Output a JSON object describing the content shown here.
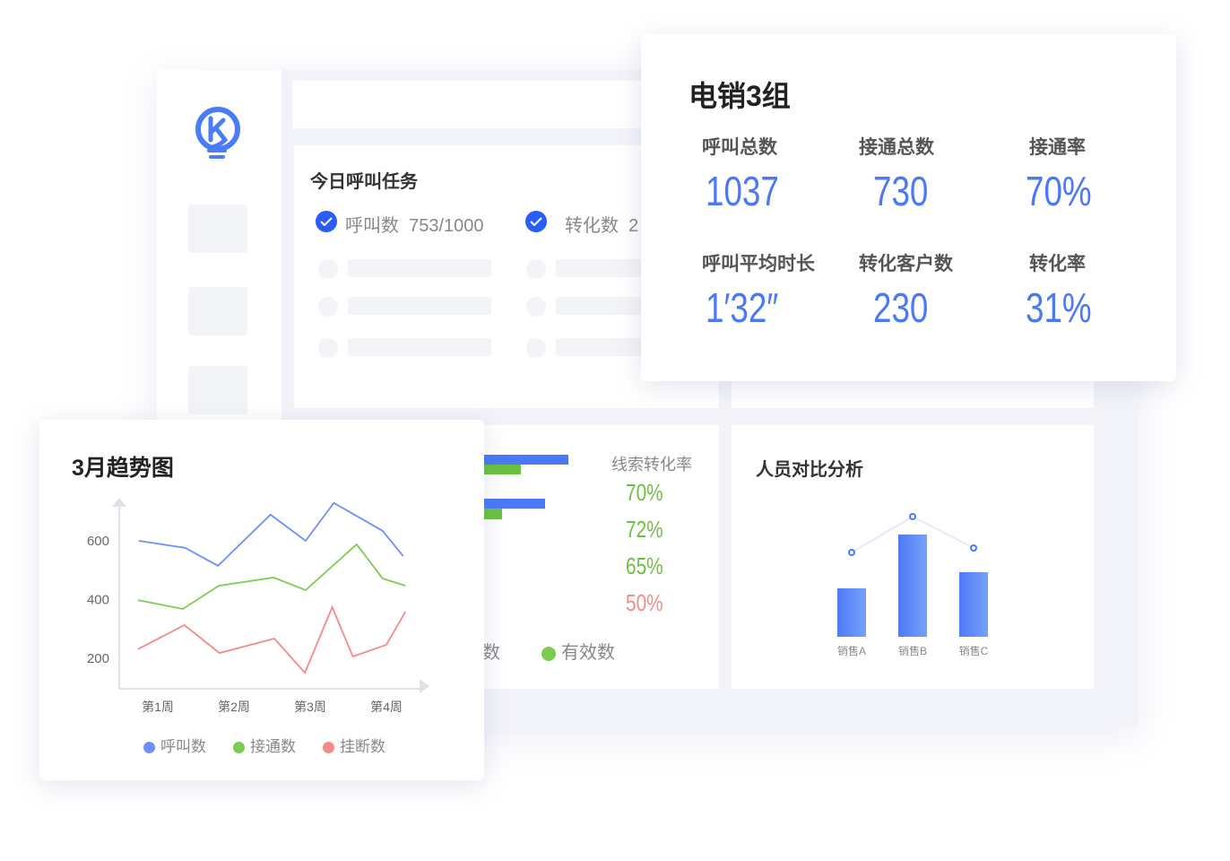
{
  "colors": {
    "accent": "#2a5cf6",
    "blue": "#6e8ff7",
    "green": "#7ccc52",
    "red": "#f38a8a"
  },
  "logo": {
    "icon": "lightbulb-k-logo"
  },
  "task": {
    "title": "今日呼叫任务",
    "items": [
      {
        "label": "呼叫数",
        "value": "753/1000"
      },
      {
        "label": "转化数",
        "value": "2"
      }
    ]
  },
  "team": {
    "title": "电销3组",
    "stats": [
      {
        "label": "呼叫总数",
        "value": "1037"
      },
      {
        "label": "接通总数",
        "value": "730"
      },
      {
        "label": "接通率",
        "value": "70%"
      },
      {
        "label": "呼叫平均时长",
        "value": "1′32″"
      },
      {
        "label": "转化客户数",
        "value": "230"
      },
      {
        "label": "转化率",
        "value": "31%"
      }
    ]
  },
  "leads": {
    "rate_title": "线索转化率",
    "rates": [
      {
        "value": "70%",
        "color": "#6cc040"
      },
      {
        "value": "72%",
        "color": "#6cc040"
      },
      {
        "value": "65%",
        "color": "#6cc040"
      },
      {
        "value": "50%",
        "color": "#f38a8a"
      }
    ],
    "legend": [
      {
        "label": "数",
        "color": "#4a78f6"
      },
      {
        "label": "有效数",
        "color": "#7ccc52"
      }
    ]
  },
  "chart_data": [
    {
      "type": "line",
      "title": "3月趋势图",
      "xlabel": "",
      "ylabel": "",
      "ylim": [
        96,
        737
      ],
      "xticks": [
        "第1周",
        "第2周",
        "第3周",
        "第4周"
      ],
      "yticks": [
        200,
        400,
        600
      ],
      "grid": false,
      "legend": "bottom",
      "series": [
        {
          "name": "呼叫数",
          "color": "#6e8ff7",
          "x": [
            0.75,
            1.36,
            1.79,
            2.48,
            2.94,
            3.31,
            3.95,
            4.22
          ],
          "y": [
            600,
            576,
            515,
            689,
            600,
            729,
            634,
            548
          ]
        },
        {
          "name": "接通数",
          "color": "#7ccc52",
          "x": [
            0.74,
            1.33,
            1.8,
            2.52,
            2.94,
            3.61,
            3.95,
            4.25
          ],
          "y": [
            398,
            368,
            447,
            475,
            432,
            588,
            472,
            447
          ]
        },
        {
          "name": "挂断数",
          "color": "#f38a8a",
          "x": [
            0.74,
            1.35,
            1.81,
            2.53,
            2.93,
            3.29,
            3.56,
            4.0,
            4.25
          ],
          "y": [
            231,
            313,
            218,
            267,
            151,
            374,
            206,
            246,
            359
          ]
        }
      ]
    },
    {
      "type": "bar",
      "title": "人员对比分析",
      "categories": [
        "销售A",
        "销售B",
        "销售C"
      ],
      "series": [
        {
          "type": "bar",
          "values": [
            54,
            114,
            72
          ]
        },
        {
          "type": "line",
          "values": [
            94,
            134,
            99
          ]
        }
      ],
      "ylim": [
        0,
        140
      ]
    }
  ]
}
